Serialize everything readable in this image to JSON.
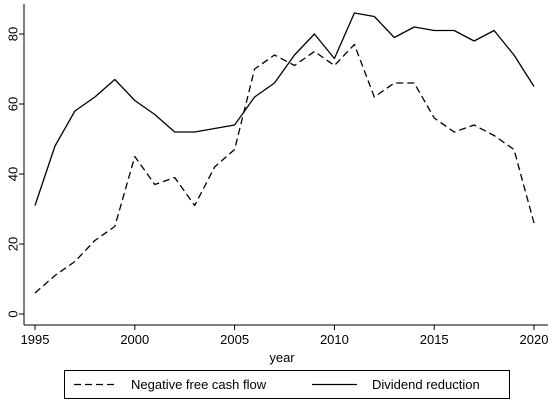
{
  "chart_data": {
    "type": "line",
    "xlabel": "year",
    "ylabel": "",
    "xlim": [
      1995,
      2020
    ],
    "ylim": [
      0,
      86
    ],
    "x_ticks": [
      1995,
      2000,
      2005,
      2010,
      2015,
      2020
    ],
    "y_ticks": [
      0,
      20,
      40,
      60,
      80
    ],
    "grid": false,
    "legend_position": "bottom",
    "x": [
      1995,
      1996,
      1997,
      1998,
      1999,
      2000,
      2001,
      2002,
      2003,
      2004,
      2005,
      2006,
      2007,
      2008,
      2009,
      2010,
      2011,
      2012,
      2013,
      2014,
      2015,
      2016,
      2017,
      2018,
      2019,
      2020
    ],
    "series": [
      {
        "name": "Negative free cash flow",
        "style": "dashed",
        "color": "#000000",
        "values": [
          6,
          11,
          15,
          21,
          25,
          45,
          37,
          39,
          31,
          42,
          47,
          70,
          74,
          71,
          75,
          71,
          77,
          62,
          66,
          66,
          56,
          52,
          54,
          51,
          47,
          26
        ]
      },
      {
        "name": "Dividend reduction",
        "style": "solid",
        "color": "#000000",
        "values": [
          31,
          48,
          58,
          62,
          67,
          61,
          57,
          52,
          52,
          53,
          54,
          62,
          66,
          74,
          80,
          73,
          86,
          85,
          79,
          82,
          81,
          81,
          78,
          81,
          74,
          65
        ]
      }
    ]
  }
}
